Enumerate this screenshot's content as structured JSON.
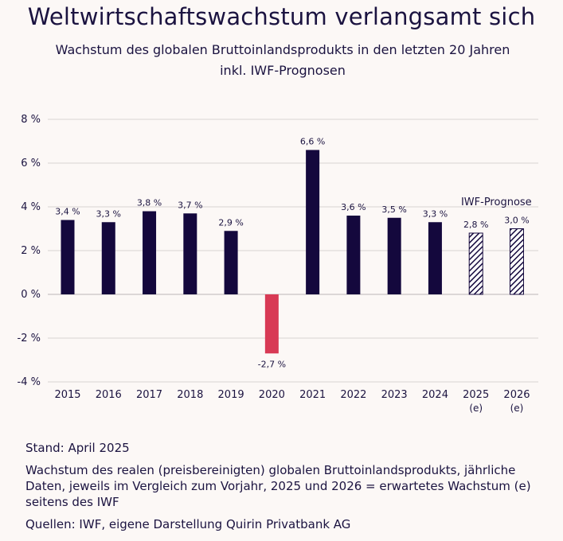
{
  "header": {
    "title": "Weltwirtschaftswachstum verlangsamt sich",
    "subtitle": "Wachstum des globalen Bruttoinlandsprodukts in den letzten 20 Jahren inkl. IWF-Prognosen"
  },
  "chart_data": {
    "type": "bar",
    "categories": [
      "2015",
      "2016",
      "2017",
      "2018",
      "2019",
      "2020",
      "2021",
      "2022",
      "2023",
      "2024",
      "2025",
      "2026"
    ],
    "category_sublabels": [
      "",
      "",
      "",
      "",
      "",
      "",
      "",
      "",
      "",
      "",
      "(e)",
      "(e)"
    ],
    "values": [
      3.4,
      3.3,
      3.8,
      3.7,
      2.9,
      -2.7,
      6.6,
      3.6,
      3.5,
      3.3,
      2.8,
      3.0
    ],
    "value_labels": [
      "3,4 %",
      "3,3 %",
      "3,8 %",
      "3,7 %",
      "2,9 %",
      "-2,7 %",
      "6,6 %",
      "3,6 %",
      "3,5 %",
      "3,3 %",
      "2,8 %",
      "3,0 %"
    ],
    "forecast": [
      false,
      false,
      false,
      false,
      false,
      false,
      false,
      false,
      false,
      false,
      true,
      true
    ],
    "forecast_annotation": "IWF-Prognose",
    "ylim": [
      -4,
      8
    ],
    "yticks": [
      -4,
      -2,
      0,
      2,
      4,
      6,
      8
    ],
    "ytick_labels": [
      "-4 %",
      "-2 %",
      "0 %",
      "2 %",
      "4 %",
      "6 %",
      "8 %"
    ],
    "grid": true,
    "colors": {
      "positive": "#14083d",
      "negative": "#d83a55",
      "forecast_hatch": "#14083d",
      "grid": "#d9d3d3"
    }
  },
  "notes": {
    "stand": "Stand: April 2025",
    "description": "Wachstum des realen (preisbereinigten) globalen Bruttoinlandsprodukts, jährliche Daten, jeweils im Vergleich zum Vorjahr, 2025 und 2026 = erwartetes Wachstum (e) seitens des IWF",
    "sources": "Quellen: IWF, eigene Darstellung Quirin Privatbank AG"
  }
}
